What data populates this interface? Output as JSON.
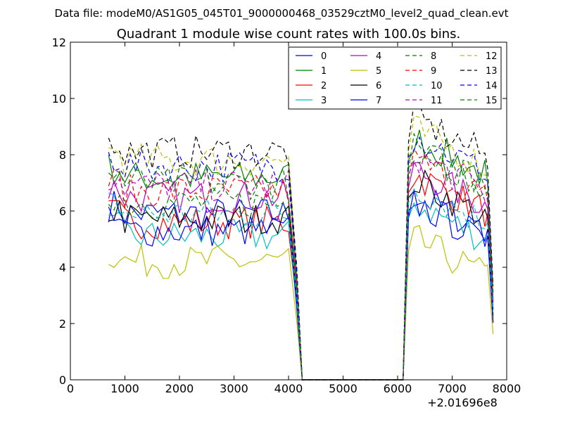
{
  "chart_data": {
    "type": "line",
    "suptitle": "Data file: modeM0/AS1G05_045T01_9000000468_03529cztM0_level2_quad_clean.evt",
    "title": "Quadrant 1 module wise count rates with 100.0s bins.",
    "xlabel": "",
    "ylabel": "",
    "xlim": [
      0,
      8000
    ],
    "ylim": [
      0,
      12
    ],
    "x_offset_label": "+2.01696e8",
    "xticks": [
      0,
      1000,
      2000,
      3000,
      4000,
      5000,
      6000,
      7000,
      8000
    ],
    "yticks": [
      0,
      2,
      4,
      6,
      8,
      10,
      12
    ],
    "xtick_labels": [
      "0",
      "1000",
      "2000",
      "3000",
      "4000",
      "5000",
      "6000",
      "7000",
      "8000"
    ],
    "ytick_labels": [
      "0",
      "2",
      "4",
      "6",
      "8",
      "10",
      "12"
    ],
    "legend_position": "top-right",
    "legend_columns": 4,
    "series": [
      {
        "name": "0",
        "color": "#0000ff",
        "dash": "solid",
        "base": 5.9,
        "post_base": 6.7,
        "min": 4.5
      },
      {
        "name": "1",
        "color": "#008000",
        "dash": "solid",
        "base": 7.2,
        "post_base": 8.7,
        "min": 6.2
      },
      {
        "name": "2",
        "color": "#ff0000",
        "dash": "solid",
        "base": 5.6,
        "post_base": 7.4,
        "min": 5.0
      },
      {
        "name": "3",
        "color": "#00bfbf",
        "dash": "solid",
        "base": 5.1,
        "post_base": 6.4,
        "min": 4.6
      },
      {
        "name": "4",
        "color": "#bf00bf",
        "dash": "solid",
        "base": 6.5,
        "post_base": 7.6,
        "min": 5.6
      },
      {
        "name": "5",
        "color": "#bfbf00",
        "dash": "solid",
        "base": 4.2,
        "post_base": 5.1,
        "min": 3.6
      },
      {
        "name": "6",
        "color": "#000000",
        "dash": "solid",
        "base": 5.7,
        "post_base": 7.2,
        "min": 5.2
      },
      {
        "name": "7",
        "color": "#0000ff",
        "dash": "solid",
        "base": 5.3,
        "post_base": 6.4,
        "min": 4.6
      },
      {
        "name": "8",
        "color": "#008000",
        "dash": "dashed",
        "base": 6.3,
        "post_base": 8.4,
        "min": 5.6
      },
      {
        "name": "9",
        "color": "#ff0000",
        "dash": "dashed",
        "base": 6.7,
        "post_base": 7.9,
        "min": 6.0
      },
      {
        "name": "10",
        "color": "#00bfbf",
        "dash": "dashed",
        "base": 5.9,
        "post_base": 7.0,
        "min": 5.3
      },
      {
        "name": "11",
        "color": "#bf00bf",
        "dash": "dashed",
        "base": 6.9,
        "post_base": 8.1,
        "min": 6.1
      },
      {
        "name": "12",
        "color": "#bfbf00",
        "dash": "dashed",
        "base": 7.8,
        "post_base": 9.0,
        "min": 7.1
      },
      {
        "name": "13",
        "color": "#000000",
        "dash": "dashed",
        "base": 8.1,
        "post_base": 9.4,
        "min": 7.4
      },
      {
        "name": "14",
        "color": "#0000ff",
        "dash": "dashed",
        "base": 7.6,
        "post_base": 8.8,
        "min": 6.9
      },
      {
        "name": "15",
        "color": "#008000",
        "dash": "dashed",
        "base": 7.0,
        "post_base": 8.3,
        "min": 6.4
      }
    ],
    "time_segments": {
      "active_1": [
        700,
        4050
      ],
      "gap": [
        4250,
        6100
      ],
      "active_2": [
        6200,
        7750
      ],
      "bin": 100
    }
  }
}
